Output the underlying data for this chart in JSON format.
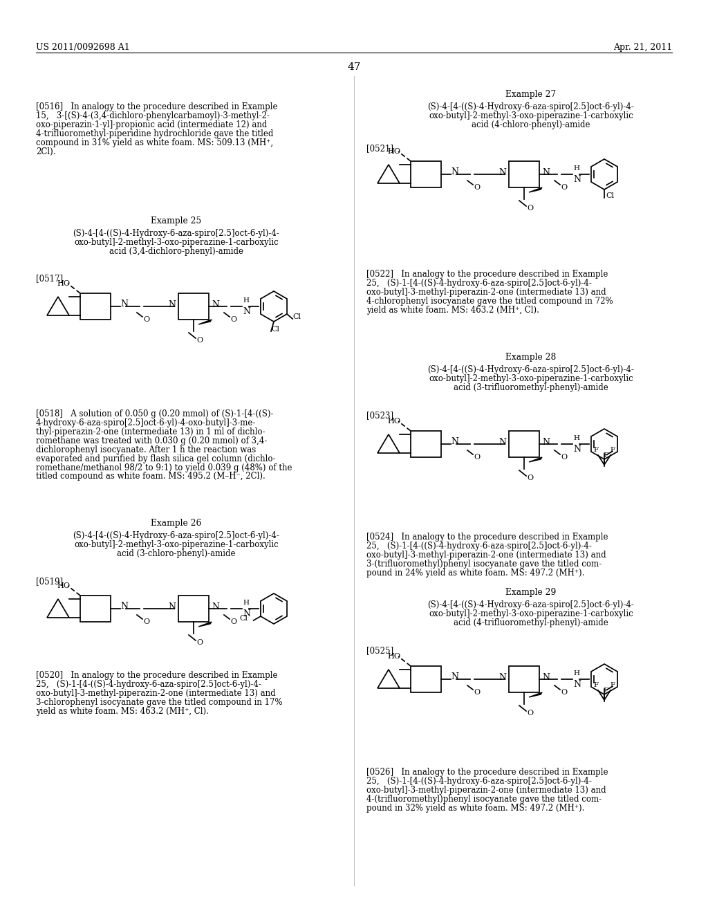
{
  "background_color": "#ffffff",
  "header_left": "US 2011/0092698 A1",
  "header_right": "Apr. 21, 2011",
  "page_number": "47"
}
